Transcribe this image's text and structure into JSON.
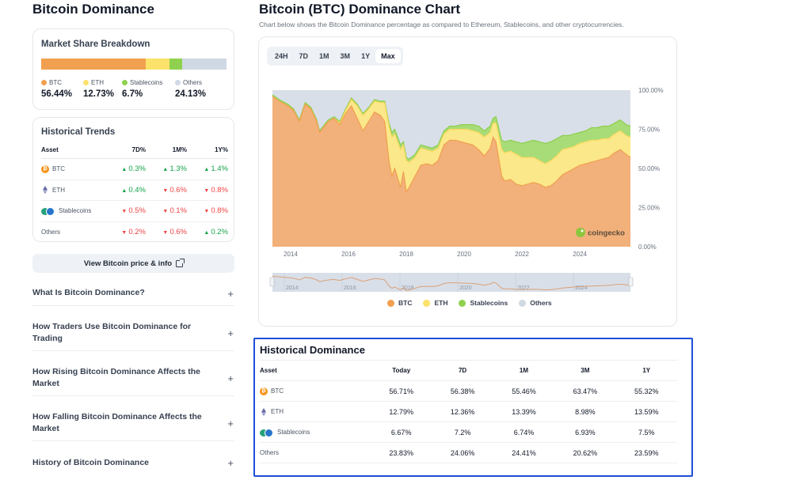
{
  "left": {
    "page_title": "Bitcoin Dominance",
    "market_share": {
      "title": "Market Share Breakdown",
      "items": [
        {
          "label": "BTC",
          "value": "56.44%",
          "pct": 56.44,
          "color": "#f0a050"
        },
        {
          "label": "ETH",
          "value": "12.73%",
          "pct": 12.73,
          "color": "#fbe26a"
        },
        {
          "label": "Stablecoins",
          "value": "6.7%",
          "pct": 6.7,
          "color": "#8fd14f"
        },
        {
          "label": "Others",
          "value": "24.13%",
          "pct": 24.13,
          "color": "#cfd8e3"
        }
      ]
    },
    "historical_trends": {
      "title": "Historical Trends",
      "headers": [
        "Asset",
        "7D%",
        "1M%",
        "1Y%"
      ],
      "rows": [
        {
          "asset": "BTC",
          "icon": "bitcoin-icon",
          "values": [
            {
              "v": "0.3%",
              "dir": "up"
            },
            {
              "v": "1.3%",
              "dir": "up"
            },
            {
              "v": "1.4%",
              "dir": "up"
            }
          ]
        },
        {
          "asset": "ETH",
          "icon": "ethereum-icon",
          "values": [
            {
              "v": "0.4%",
              "dir": "up"
            },
            {
              "v": "0.6%",
              "dir": "down"
            },
            {
              "v": "0.8%",
              "dir": "down"
            }
          ]
        },
        {
          "asset": "Stablecoins",
          "icon": "stablecoins-icon",
          "values": [
            {
              "v": "0.5%",
              "dir": "down"
            },
            {
              "v": "0.1%",
              "dir": "down"
            },
            {
              "v": "0.8%",
              "dir": "down"
            }
          ]
        },
        {
          "asset": "Others",
          "icon": "",
          "values": [
            {
              "v": "0.2%",
              "dir": "down"
            },
            {
              "v": "0.6%",
              "dir": "down"
            },
            {
              "v": "0.2%",
              "dir": "up"
            }
          ]
        }
      ]
    },
    "view_button": "View Bitcoin price & info",
    "faqs": [
      "What Is Bitcoin Dominance?",
      "How Traders Use Bitcoin Dominance for Trading",
      "How Rising Bitcoin Dominance Affects the Market",
      "How Falling Bitcoin Dominance Affects the Market",
      "History of Bitcoin Dominance"
    ]
  },
  "right": {
    "title": "Bitcoin (BTC) Dominance Chart",
    "subtitle": "Chart below shows the Bitcoin Dominance percentage as compared to Ethereum, Stablecoins, and other cryptocurrencies.",
    "range_tabs": [
      "24H",
      "7D",
      "1M",
      "3M",
      "1Y",
      "Max"
    ],
    "active_range": "Max",
    "watermark": "coingecko",
    "legend": [
      {
        "label": "BTC",
        "color": "#f0a050"
      },
      {
        "label": "ETH",
        "color": "#fbe26a"
      },
      {
        "label": "Stablecoins",
        "color": "#8fd14f"
      },
      {
        "label": "Others",
        "color": "#cfd8e3"
      }
    ]
  },
  "historical_dominance": {
    "title": "Historical Dominance",
    "headers": [
      "Asset",
      "Today",
      "7D",
      "1M",
      "3M",
      "1Y"
    ],
    "rows": [
      {
        "asset": "BTC",
        "icon": "bitcoin-icon",
        "values": [
          "56.71%",
          "56.38%",
          "55.46%",
          "63.47%",
          "55.32%"
        ]
      },
      {
        "asset": "ETH",
        "icon": "ethereum-icon",
        "values": [
          "12.79%",
          "12.36%",
          "13.39%",
          "8.98%",
          "13.59%"
        ]
      },
      {
        "asset": "Stablecoins",
        "icon": "stablecoins-icon",
        "values": [
          "6.67%",
          "7.2%",
          "6.74%",
          "6.93%",
          "7.5%"
        ]
      },
      {
        "asset": "Others",
        "icon": "",
        "values": [
          "23.83%",
          "24.06%",
          "24.41%",
          "20.62%",
          "23.59%"
        ]
      }
    ]
  },
  "chart_data": {
    "type": "area",
    "stacked": true,
    "title": "Bitcoin (BTC) Dominance Chart",
    "xlabel": "",
    "ylabel": "",
    "x_ticks": [
      "2014",
      "2016",
      "2018",
      "2020",
      "2022",
      "2024"
    ],
    "y_ticks": [
      "0.00%",
      "25.00%",
      "50.00%",
      "75.00%",
      "100.00%"
    ],
    "xlim": [
      2013.37,
      2025.75
    ],
    "ylim": [
      0,
      100
    ],
    "legend_position": "bottom",
    "x": [
      2013.37,
      2013.6,
      2013.9,
      2014.1,
      2014.3,
      2014.5,
      2014.7,
      2014.9,
      2015.0,
      2015.3,
      2015.5,
      2015.7,
      2015.9,
      2016.1,
      2016.3,
      2016.5,
      2016.7,
      2016.9,
      2017.1,
      2017.25,
      2017.4,
      2017.5,
      2017.6,
      2017.8,
      2017.9,
      2018.0,
      2018.1,
      2018.3,
      2018.5,
      2018.7,
      2018.9,
      2019.1,
      2019.3,
      2019.5,
      2019.7,
      2019.9,
      2020.1,
      2020.3,
      2020.5,
      2020.7,
      2020.9,
      2021.0,
      2021.1,
      2021.3,
      2021.4,
      2021.6,
      2021.8,
      2022.0,
      2022.2,
      2022.4,
      2022.6,
      2022.8,
      2023.0,
      2023.2,
      2023.4,
      2023.6,
      2023.8,
      2024.0,
      2024.2,
      2024.4,
      2024.6,
      2024.8,
      2025.0,
      2025.2,
      2025.4,
      2025.6,
      2025.75
    ],
    "series": [
      {
        "name": "BTC",
        "values": [
          96,
          93,
          90,
          87,
          80,
          91,
          88,
          80,
          73,
          80,
          82,
          78,
          85,
          90,
          82,
          74,
          80,
          86,
          84,
          80,
          55,
          45,
          50,
          38,
          48,
          35,
          38,
          45,
          52,
          53,
          52,
          55,
          65,
          68,
          68,
          67,
          66,
          65,
          62,
          58,
          63,
          70,
          67,
          45,
          42,
          43,
          40,
          39,
          40,
          41,
          40,
          38,
          39,
          42,
          46,
          48,
          50,
          52,
          53,
          54,
          55,
          56,
          57,
          60,
          62,
          59,
          57
        ]
      },
      {
        "name": "ETH",
        "values": [
          0,
          0,
          0,
          0,
          0,
          0,
          0,
          0,
          0,
          0,
          0,
          1,
          2,
          4,
          8,
          10,
          8,
          7,
          8,
          12,
          22,
          25,
          22,
          24,
          17,
          20,
          16,
          12,
          11,
          9,
          9,
          8,
          7,
          7,
          7,
          8,
          9,
          9,
          11,
          12,
          10,
          9,
          12,
          17,
          18,
          18,
          19,
          18,
          17,
          16,
          15,
          15,
          16,
          16,
          16,
          15,
          14,
          14,
          14,
          14,
          13,
          13,
          12,
          12,
          12,
          12,
          13
        ]
      },
      {
        "name": "Stablecoins",
        "values": [
          1,
          1,
          1,
          1,
          1,
          1,
          1,
          1,
          1,
          1,
          1,
          1,
          1,
          1,
          1,
          1,
          1,
          1,
          1,
          1,
          2,
          3,
          3,
          3,
          2,
          2,
          2,
          2,
          2,
          2,
          2,
          2,
          2,
          2,
          2,
          3,
          3,
          4,
          4,
          4,
          4,
          3,
          4,
          6,
          7,
          7,
          8,
          9,
          10,
          11,
          12,
          13,
          12,
          11,
          9,
          8,
          8,
          7,
          7,
          8,
          8,
          8,
          8,
          7,
          7,
          7,
          7
        ]
      },
      {
        "name": "Others",
        "values": [
          3,
          6,
          9,
          12,
          19,
          8,
          11,
          19,
          26,
          19,
          17,
          20,
          12,
          5,
          9,
          15,
          11,
          6,
          7,
          7,
          21,
          27,
          25,
          35,
          33,
          43,
          44,
          41,
          35,
          36,
          37,
          35,
          26,
          23,
          23,
          22,
          22,
          22,
          23,
          26,
          23,
          18,
          17,
          32,
          33,
          32,
          33,
          34,
          33,
          32,
          33,
          34,
          33,
          31,
          29,
          29,
          28,
          27,
          26,
          24,
          24,
          23,
          23,
          21,
          19,
          22,
          23
        ]
      }
    ]
  }
}
